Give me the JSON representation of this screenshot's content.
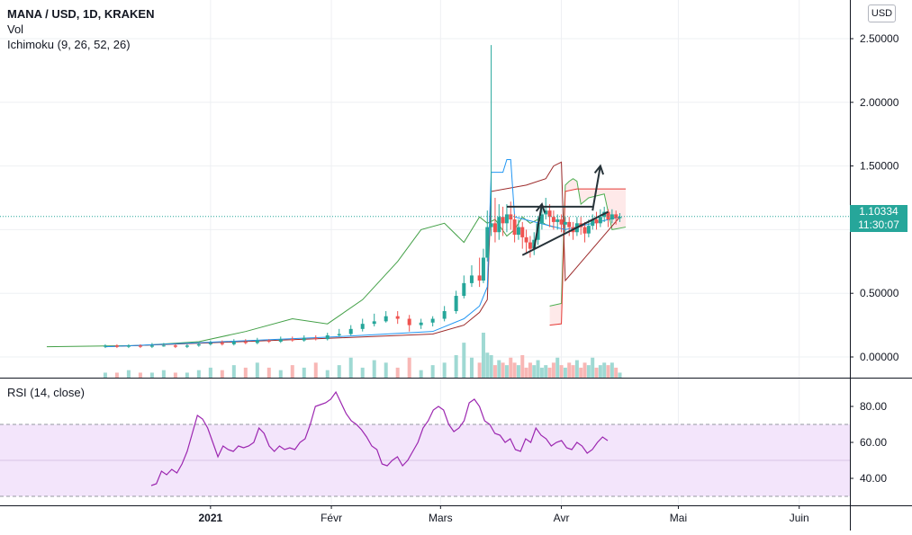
{
  "legend": {
    "symbol": "MANA / USD, 1D, KRAKEN",
    "vol": "Vol",
    "ichimoku": "Ichimoku (9, 26, 52, 26)",
    "rsi": "RSI (14, close)"
  },
  "currency_badge": "USD",
  "price_label": {
    "price": "1.10334",
    "countdown": "11:30:07"
  },
  "colors": {
    "up": "#26a69a",
    "down": "#ef5350",
    "conversion": "#2196f3",
    "base": "#9c2a2a",
    "lagging": "#43a047",
    "leading_a": "#4caf50",
    "leading_b": "#e53935",
    "rsi": "#9c27b0",
    "rsi_band": "#f3e5fb",
    "drawing": "#263238"
  },
  "chart_data": [
    {
      "type": "candlestick",
      "title": "MANA / USD, 1D, KRAKEN",
      "price_axis": {
        "ticks": [
          0.0,
          0.5,
          1.0,
          1.5,
          2.0,
          2.5
        ],
        "labels": [
          "0.00000",
          "0.50000",
          "",
          "1.50000",
          "2.00000",
          "2.50000"
        ],
        "range": [
          -0.09,
          2.65
        ]
      },
      "time_axis": {
        "range": [
          "2020-11-08",
          "2021-06-14"
        ],
        "ticks": [
          {
            "date": "2021-01-01",
            "label": "2021"
          },
          {
            "date": "2021-02-01",
            "label": "Févr"
          },
          {
            "date": "2021-03-01",
            "label": "Mars"
          },
          {
            "date": "2021-04-01",
            "label": "Avr"
          },
          {
            "date": "2021-05-01",
            "label": "Mai"
          },
          {
            "date": "2021-06-01",
            "label": "Juin"
          }
        ]
      },
      "last_price": 1.10334,
      "candle_dates": [
        "2020-12-05",
        "2020-12-08",
        "2020-12-11",
        "2020-12-14",
        "2020-12-17",
        "2020-12-20",
        "2020-12-23",
        "2020-12-26",
        "2020-12-29",
        "2021-01-01",
        "2021-01-04",
        "2021-01-07",
        "2021-01-10",
        "2021-01-13",
        "2021-01-16",
        "2021-01-19",
        "2021-01-22",
        "2021-01-25",
        "2021-01-28",
        "2021-01-31",
        "2021-02-03",
        "2021-02-06",
        "2021-02-09",
        "2021-02-12",
        "2021-02-15",
        "2021-02-18",
        "2021-02-21",
        "2021-02-24",
        "2021-02-27",
        "2021-03-02",
        "2021-03-05",
        "2021-03-07",
        "2021-03-09",
        "2021-03-11",
        "2021-03-12",
        "2021-03-13",
        "2021-03-14",
        "2021-03-15",
        "2021-03-16",
        "2021-03-17",
        "2021-03-18",
        "2021-03-19",
        "2021-03-20",
        "2021-03-21",
        "2021-03-22",
        "2021-03-23",
        "2021-03-24",
        "2021-03-25",
        "2021-03-26",
        "2021-03-27",
        "2021-03-28",
        "2021-03-29",
        "2021-03-30",
        "2021-03-31",
        "2021-04-01",
        "2021-04-02",
        "2021-04-03",
        "2021-04-04",
        "2021-04-05",
        "2021-04-06",
        "2021-04-07",
        "2021-04-08",
        "2021-04-09",
        "2021-04-10",
        "2021-04-11",
        "2021-04-12",
        "2021-04-13",
        "2021-04-14",
        "2021-04-15",
        "2021-04-16"
      ],
      "candles": [
        [
          0.08,
          0.09,
          0.1,
          0.07
        ],
        [
          0.09,
          0.08,
          0.1,
          0.07
        ],
        [
          0.08,
          0.09,
          0.1,
          0.07
        ],
        [
          0.09,
          0.08,
          0.1,
          0.07
        ],
        [
          0.08,
          0.09,
          0.11,
          0.07
        ],
        [
          0.09,
          0.09,
          0.11,
          0.08
        ],
        [
          0.09,
          0.08,
          0.1,
          0.07
        ],
        [
          0.08,
          0.09,
          0.1,
          0.07
        ],
        [
          0.09,
          0.1,
          0.11,
          0.08
        ],
        [
          0.1,
          0.11,
          0.13,
          0.09
        ],
        [
          0.11,
          0.1,
          0.13,
          0.09
        ],
        [
          0.1,
          0.12,
          0.14,
          0.09
        ],
        [
          0.12,
          0.11,
          0.14,
          0.1
        ],
        [
          0.11,
          0.13,
          0.15,
          0.1
        ],
        [
          0.13,
          0.12,
          0.14,
          0.11
        ],
        [
          0.12,
          0.14,
          0.16,
          0.11
        ],
        [
          0.14,
          0.13,
          0.16,
          0.12
        ],
        [
          0.13,
          0.15,
          0.17,
          0.12
        ],
        [
          0.15,
          0.14,
          0.17,
          0.13
        ],
        [
          0.14,
          0.17,
          0.19,
          0.13
        ],
        [
          0.17,
          0.18,
          0.22,
          0.16
        ],
        [
          0.18,
          0.22,
          0.25,
          0.17
        ],
        [
          0.22,
          0.26,
          0.3,
          0.2
        ],
        [
          0.26,
          0.28,
          0.34,
          0.24
        ],
        [
          0.28,
          0.32,
          0.36,
          0.27
        ],
        [
          0.32,
          0.3,
          0.36,
          0.26
        ],
        [
          0.3,
          0.25,
          0.33,
          0.2
        ],
        [
          0.25,
          0.27,
          0.3,
          0.22
        ],
        [
          0.27,
          0.3,
          0.32,
          0.24
        ],
        [
          0.3,
          0.36,
          0.4,
          0.28
        ],
        [
          0.36,
          0.48,
          0.52,
          0.34
        ],
        [
          0.48,
          0.58,
          0.64,
          0.46
        ],
        [
          0.58,
          0.64,
          0.72,
          0.55
        ],
        [
          0.64,
          0.6,
          0.78,
          0.55
        ],
        [
          0.6,
          0.78,
          0.85,
          0.58
        ],
        [
          0.78,
          1.02,
          1.15,
          0.75
        ],
        [
          1.02,
          1.05,
          2.45,
          0.95
        ],
        [
          1.05,
          0.98,
          1.25,
          0.9
        ],
        [
          0.98,
          1.1,
          1.2,
          0.92
        ],
        [
          1.1,
          1.05,
          1.18,
          0.95
        ],
        [
          1.05,
          1.12,
          1.2,
          0.98
        ],
        [
          1.12,
          1.08,
          1.22,
          1.0
        ],
        [
          1.08,
          0.96,
          1.12,
          0.9
        ],
        [
          0.96,
          1.02,
          1.08,
          0.92
        ],
        [
          1.02,
          0.94,
          1.06,
          0.85
        ],
        [
          0.94,
          0.9,
          1.0,
          0.82
        ],
        [
          0.9,
          0.85,
          0.95,
          0.78
        ],
        [
          0.85,
          0.92,
          0.98,
          0.8
        ],
        [
          0.92,
          1.05,
          1.1,
          0.88
        ],
        [
          1.05,
          1.12,
          1.2,
          1.0
        ],
        [
          1.12,
          1.15,
          1.25,
          1.08
        ],
        [
          1.15,
          1.1,
          1.2,
          1.02
        ],
        [
          1.1,
          1.06,
          1.15,
          1.0
        ],
        [
          1.06,
          1.08,
          1.12,
          1.0
        ],
        [
          1.08,
          1.04,
          1.12,
          0.98
        ],
        [
          1.04,
          1.06,
          1.1,
          0.98
        ],
        [
          1.06,
          1.02,
          1.1,
          0.95
        ],
        [
          1.02,
          0.98,
          1.06,
          0.92
        ],
        [
          0.98,
          1.05,
          1.1,
          0.95
        ],
        [
          1.05,
          1.02,
          1.1,
          0.96
        ],
        [
          1.02,
          0.97,
          1.06,
          0.9
        ],
        [
          0.97,
          1.03,
          1.08,
          0.94
        ],
        [
          1.03,
          1.08,
          1.12,
          1.0
        ],
        [
          1.08,
          1.05,
          1.14,
          1.0
        ],
        [
          1.05,
          1.1,
          1.16,
          1.02
        ],
        [
          1.1,
          1.14,
          1.18,
          1.06
        ],
        [
          1.14,
          1.08,
          1.16,
          1.02
        ],
        [
          1.08,
          1.12,
          1.16,
          1.05
        ],
        [
          1.12,
          1.09,
          1.15,
          1.04
        ],
        [
          1.09,
          1.1,
          1.13,
          1.06
        ]
      ],
      "volume": [
        2,
        2,
        3,
        2,
        2,
        3,
        2,
        2,
        3,
        4,
        3,
        5,
        4,
        6,
        4,
        3,
        5,
        4,
        6,
        3,
        5,
        8,
        4,
        7,
        6,
        4,
        8,
        3,
        5,
        6,
        9,
        14,
        8,
        6,
        18,
        10,
        9,
        5,
        7,
        6,
        5,
        8,
        6,
        5,
        9,
        4,
        6,
        5,
        7,
        4,
        5,
        4,
        6,
        8,
        5,
        4,
        6,
        5,
        7,
        4,
        6,
        5,
        8,
        4,
        5,
        6,
        5,
        6,
        4,
        2
      ],
      "ichimoku": {
        "conversion_line": [
          [
            0,
            0.08
          ],
          [
            20,
            0.16
          ],
          [
            28,
            0.2
          ],
          [
            31,
            0.3
          ],
          [
            33,
            0.4
          ],
          [
            35,
            0.55
          ],
          [
            36,
            1.45
          ],
          [
            39,
            1.45
          ],
          [
            40,
            1.55
          ],
          [
            41,
            1.55
          ],
          [
            42,
            1.1
          ],
          [
            55,
            1.0
          ],
          [
            69,
            1.1
          ]
        ],
        "base_line": [
          [
            0,
            0.08
          ],
          [
            20,
            0.15
          ],
          [
            28,
            0.18
          ],
          [
            31,
            0.25
          ],
          [
            33,
            0.35
          ],
          [
            35,
            0.45
          ],
          [
            36,
            1.3
          ],
          [
            45,
            1.35
          ],
          [
            50,
            1.4
          ],
          [
            52,
            1.5
          ],
          [
            54,
            1.53
          ],
          [
            55,
            0.6
          ],
          [
            69,
            1.1
          ]
        ],
        "lagging_span": [
          [
            -5,
            0.08
          ],
          [
            3,
            0.09
          ],
          [
            8,
            0.12
          ],
          [
            12,
            0.2
          ],
          [
            16,
            0.3
          ],
          [
            19,
            0.26
          ],
          [
            22,
            0.45
          ],
          [
            25,
            0.75
          ],
          [
            27,
            1.0
          ],
          [
            29,
            1.05
          ],
          [
            31,
            0.9
          ],
          [
            33,
            1.1
          ],
          [
            35,
            1.05
          ],
          [
            37,
            1.08
          ],
          [
            40,
            0.95
          ],
          [
            42,
            1.0
          ],
          [
            44,
            1.1
          ],
          [
            46,
            1.05
          ],
          [
            48,
            1.08
          ],
          [
            50,
            1.04
          ],
          [
            52,
            1.02
          ]
        ],
        "leading_span_a": [
          [
            51,
            0.4
          ],
          [
            54,
            0.42
          ],
          [
            55,
            1.35
          ],
          [
            56,
            1.38
          ],
          [
            57,
            1.4
          ],
          [
            58,
            1.38
          ],
          [
            59,
            1.2
          ],
          [
            61,
            1.25
          ],
          [
            65,
            1.28
          ],
          [
            67,
            1.0
          ],
          [
            70,
            1.02
          ]
        ],
        "leading_span_b": [
          [
            51,
            0.25
          ],
          [
            54,
            0.26
          ],
          [
            55,
            1.3
          ],
          [
            58,
            1.32
          ],
          [
            62,
            1.32
          ],
          [
            70,
            1.32
          ]
        ]
      },
      "annotations": [
        {
          "type": "horizontal_line",
          "from": 40,
          "to": 62,
          "value": 1.18
        },
        {
          "type": "trendline",
          "from": [
            44,
            0.8
          ],
          "to": [
            66,
            1.14
          ]
        },
        {
          "type": "arrow",
          "from": [
            47,
            0.85
          ],
          "to": [
            49,
            1.2
          ]
        },
        {
          "type": "arrow",
          "from": [
            62,
            1.15
          ],
          "to": [
            64,
            1.5
          ]
        }
      ]
    },
    {
      "type": "line",
      "title": "RSI (14, close)",
      "y_axis": {
        "ticks": [
          40,
          60,
          80
        ],
        "labels": [
          "40.00",
          "60.00",
          "80.00"
        ],
        "range": [
          25,
          95
        ]
      },
      "band": [
        30,
        70
      ],
      "midline": 50,
      "values": [
        36,
        37,
        44,
        42,
        45,
        43,
        48,
        55,
        65,
        75,
        73,
        68,
        60,
        52,
        58,
        56,
        55,
        58,
        57,
        58,
        60,
        68,
        65,
        58,
        55,
        58,
        56,
        57,
        56,
        60,
        62,
        70,
        80,
        81,
        82,
        84,
        88,
        82,
        76,
        72,
        70,
        67,
        63,
        58,
        56,
        48,
        47,
        50,
        52,
        47,
        50,
        55,
        60,
        68,
        72,
        78,
        80,
        78,
        70,
        66,
        68,
        72,
        82,
        84,
        80,
        72,
        70,
        65,
        64,
        60,
        62,
        56,
        55,
        62,
        60,
        68,
        64,
        62,
        58,
        60,
        61,
        57,
        56,
        60,
        58,
        54,
        56,
        60,
        63,
        61
      ]
    }
  ]
}
